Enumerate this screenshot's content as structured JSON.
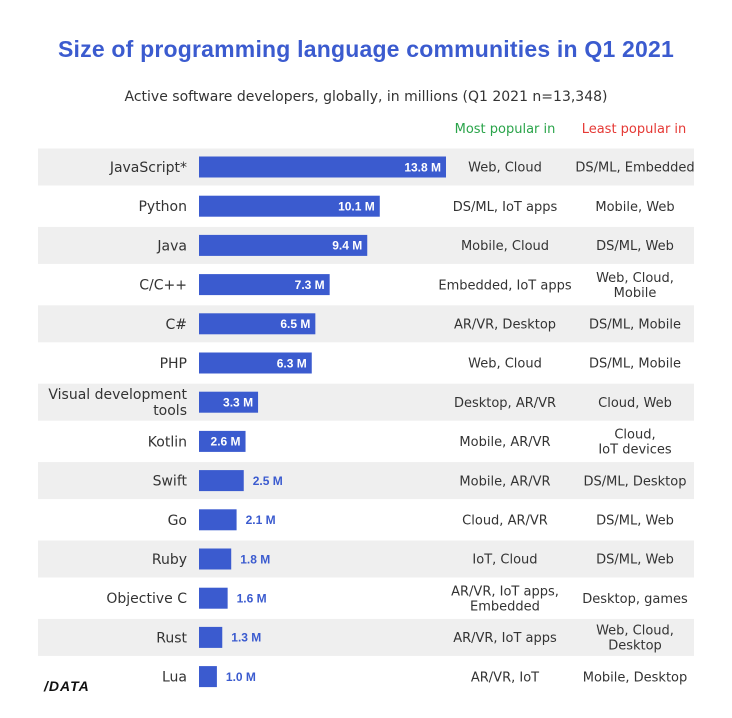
{
  "title": "Size of programming language communities in Q1 2021",
  "subtitle": "Active software developers, globally, in millions (Q1 2021 n=13,348)",
  "columns": {
    "most_popular": "Most popular in",
    "least_popular": "Least popular in"
  },
  "colors": {
    "bar": "#3b5bcf",
    "title": "#3b5bcf",
    "most_popular": "#2aa44a",
    "least_popular": "#e53935",
    "stripe": "#efefef"
  },
  "logo": "/DATA",
  "chart_data": {
    "type": "bar",
    "orientation": "horizontal",
    "unit": "M",
    "title": "Size of programming language communities in Q1 2021",
    "subtitle": "Active software developers, globally, in millions (Q1 2021 n=13,348)",
    "categories": [
      "JavaScript*",
      "Python",
      "Java",
      "C/C++",
      "C#",
      "PHP",
      "Visual development tools",
      "Kotlin",
      "Swift",
      "Go",
      "Ruby",
      "Objective C",
      "Rust",
      "Lua"
    ],
    "values": [
      13.8,
      10.1,
      9.4,
      7.3,
      6.5,
      6.3,
      3.3,
      2.6,
      2.5,
      2.1,
      1.8,
      1.6,
      1.3,
      1.0
    ],
    "data_labels": [
      "13.8 M",
      "10.1 M",
      "9.4 M",
      "7.3 M",
      "6.5 M",
      "6.3 M",
      "3.3 M",
      "2.6 M",
      "2.5 M",
      "2.1 M",
      "1.8 M",
      "1.6 M",
      "1.3 M",
      "1.0 M"
    ],
    "most_popular_in": [
      "Web, Cloud",
      "DS/ML, IoT apps",
      "Mobile, Cloud",
      "Embedded, IoT apps",
      "AR/VR, Desktop",
      "Web, Cloud",
      "Desktop, AR/VR",
      "Mobile, AR/VR",
      "Mobile, AR/VR",
      "Cloud, AR/VR",
      "IoT, Cloud",
      "AR/VR, IoT apps, Embedded",
      "AR/VR, IoT apps",
      "AR/VR, IoT"
    ],
    "least_popular_in": [
      "DS/ML, Embedded",
      "Mobile, Web",
      "DS/ML, Web",
      "Web, Cloud, Mobile",
      "DS/ML, Mobile",
      "DS/ML, Mobile",
      "Cloud, Web",
      "Cloud, IoT devices",
      "DS/ML, Desktop",
      "DS/ML, Web",
      "DS/ML, Web",
      "Desktop, games",
      "Web, Cloud, Desktop",
      "Mobile, Desktop"
    ],
    "xlim": [
      0,
      13.8
    ],
    "grid": false,
    "legend": "none"
  }
}
